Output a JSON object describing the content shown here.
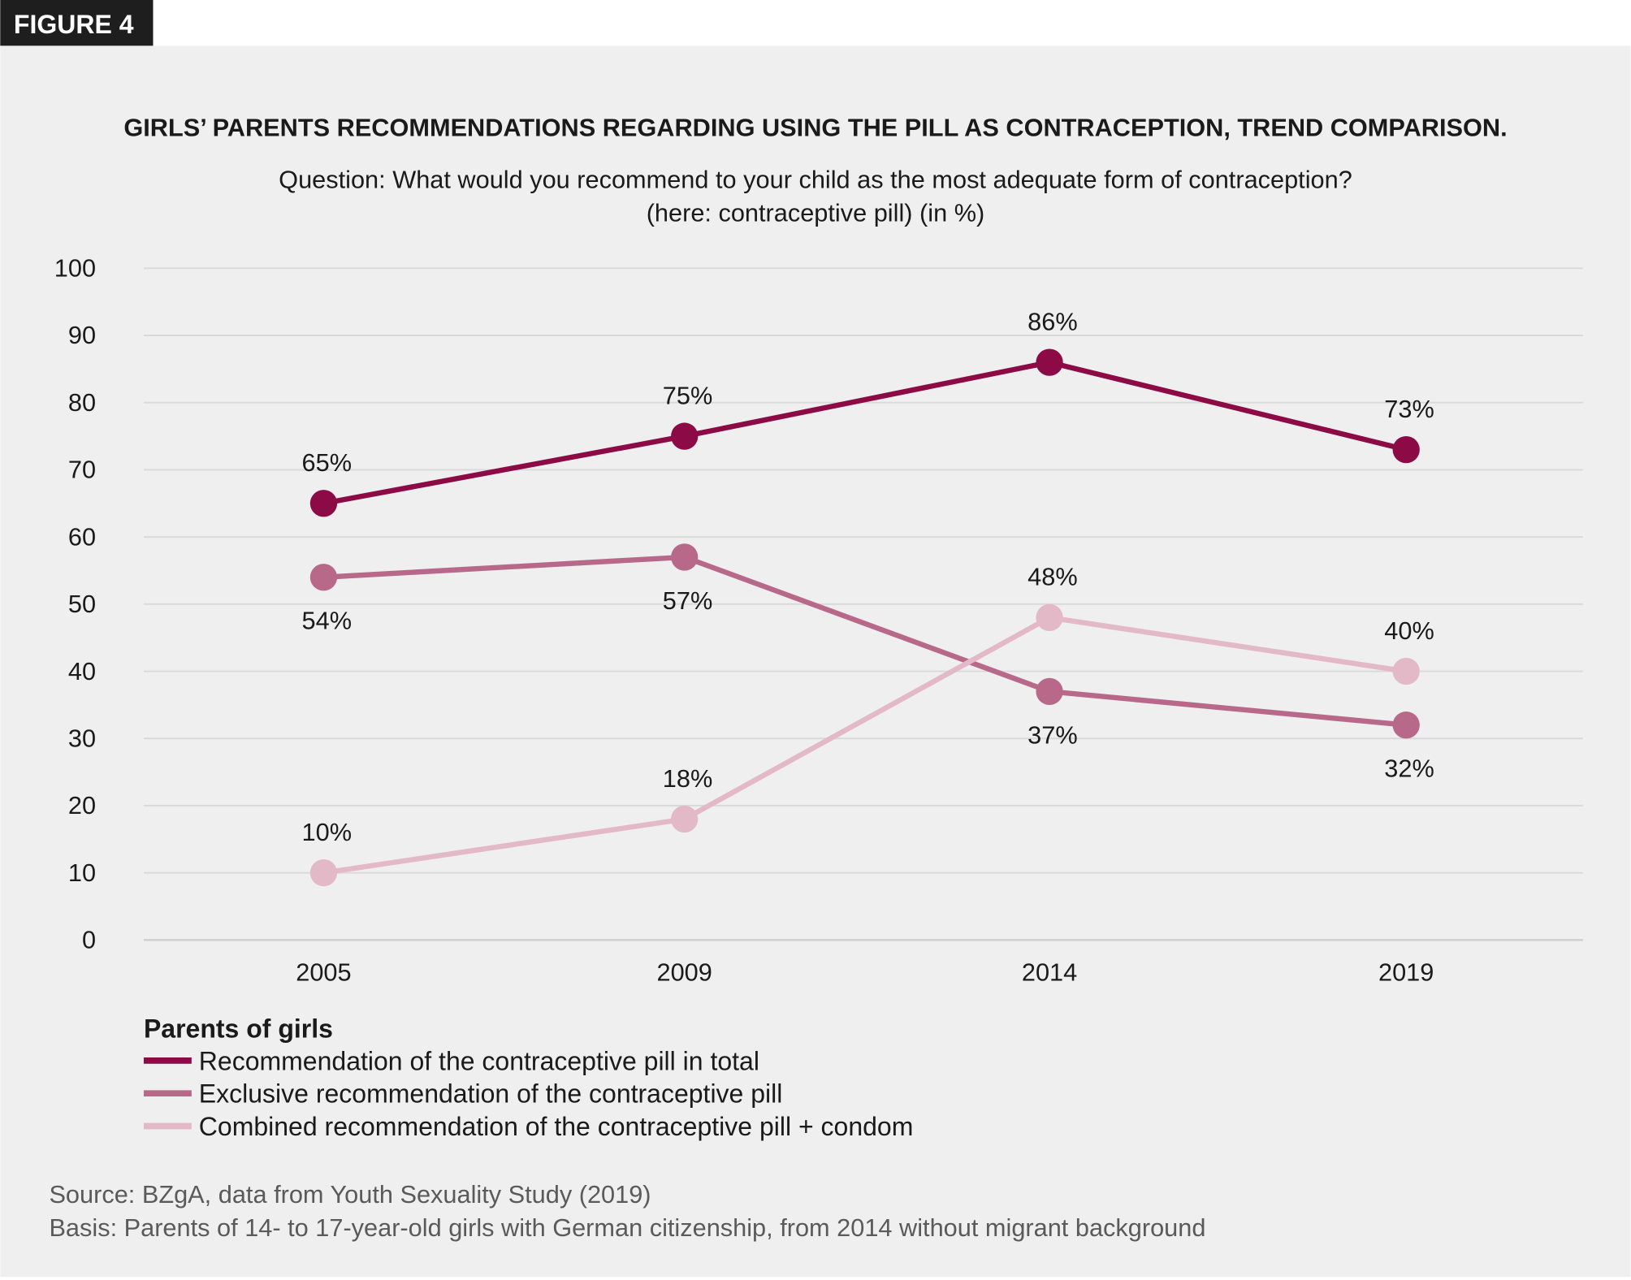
{
  "figure_label": "FIGURE 4",
  "colors": {
    "total": "#8c0a45",
    "exclusive": "#b8698a",
    "combined": "#e3b9c8",
    "background": "#efefef"
  },
  "chart_data": {
    "type": "line",
    "title": "GIRLS’ PARENTS RECOMMENDATIONS REGARDING USING THE PILL AS CONTRACEPTION, TREND COMPARISON.",
    "subtitle": [
      "Question: What would you recommend to your child as the most adequate form of contraception?",
      "(here: contraceptive pill) (in %)"
    ],
    "x": [
      "2005",
      "2009",
      "2014",
      "2019"
    ],
    "ylim": [
      0,
      100
    ],
    "yticks": [
      "0",
      "10",
      "20",
      "30",
      "40",
      "50",
      "60",
      "70",
      "80",
      "90",
      "100"
    ],
    "grid": true,
    "legend_title": "Parents of girls",
    "legend_position": "bottom-left",
    "series": [
      {
        "name": "Recommendation of the contraceptive pill in total",
        "values": [
          65,
          75,
          86,
          73
        ],
        "labels": [
          "65%",
          "75%",
          "86%",
          "73%"
        ]
      },
      {
        "name": "Exclusive recommendation of the contraceptive pill",
        "values": [
          54,
          57,
          37,
          32
        ],
        "labels": [
          "54%",
          "57%",
          "37%",
          "32%"
        ]
      },
      {
        "name": "Combined recommendation of the contraceptive pill + condom",
        "values": [
          10,
          18,
          48,
          40
        ],
        "labels": [
          "10%",
          "18%",
          "48%",
          "40%"
        ]
      }
    ]
  },
  "source": "Source: BZgA, data from Youth Sexuality Study (2019)",
  "basis": "Basis: Parents of 14- to 17-year-old girls with German citizenship, from 2014 without migrant background"
}
